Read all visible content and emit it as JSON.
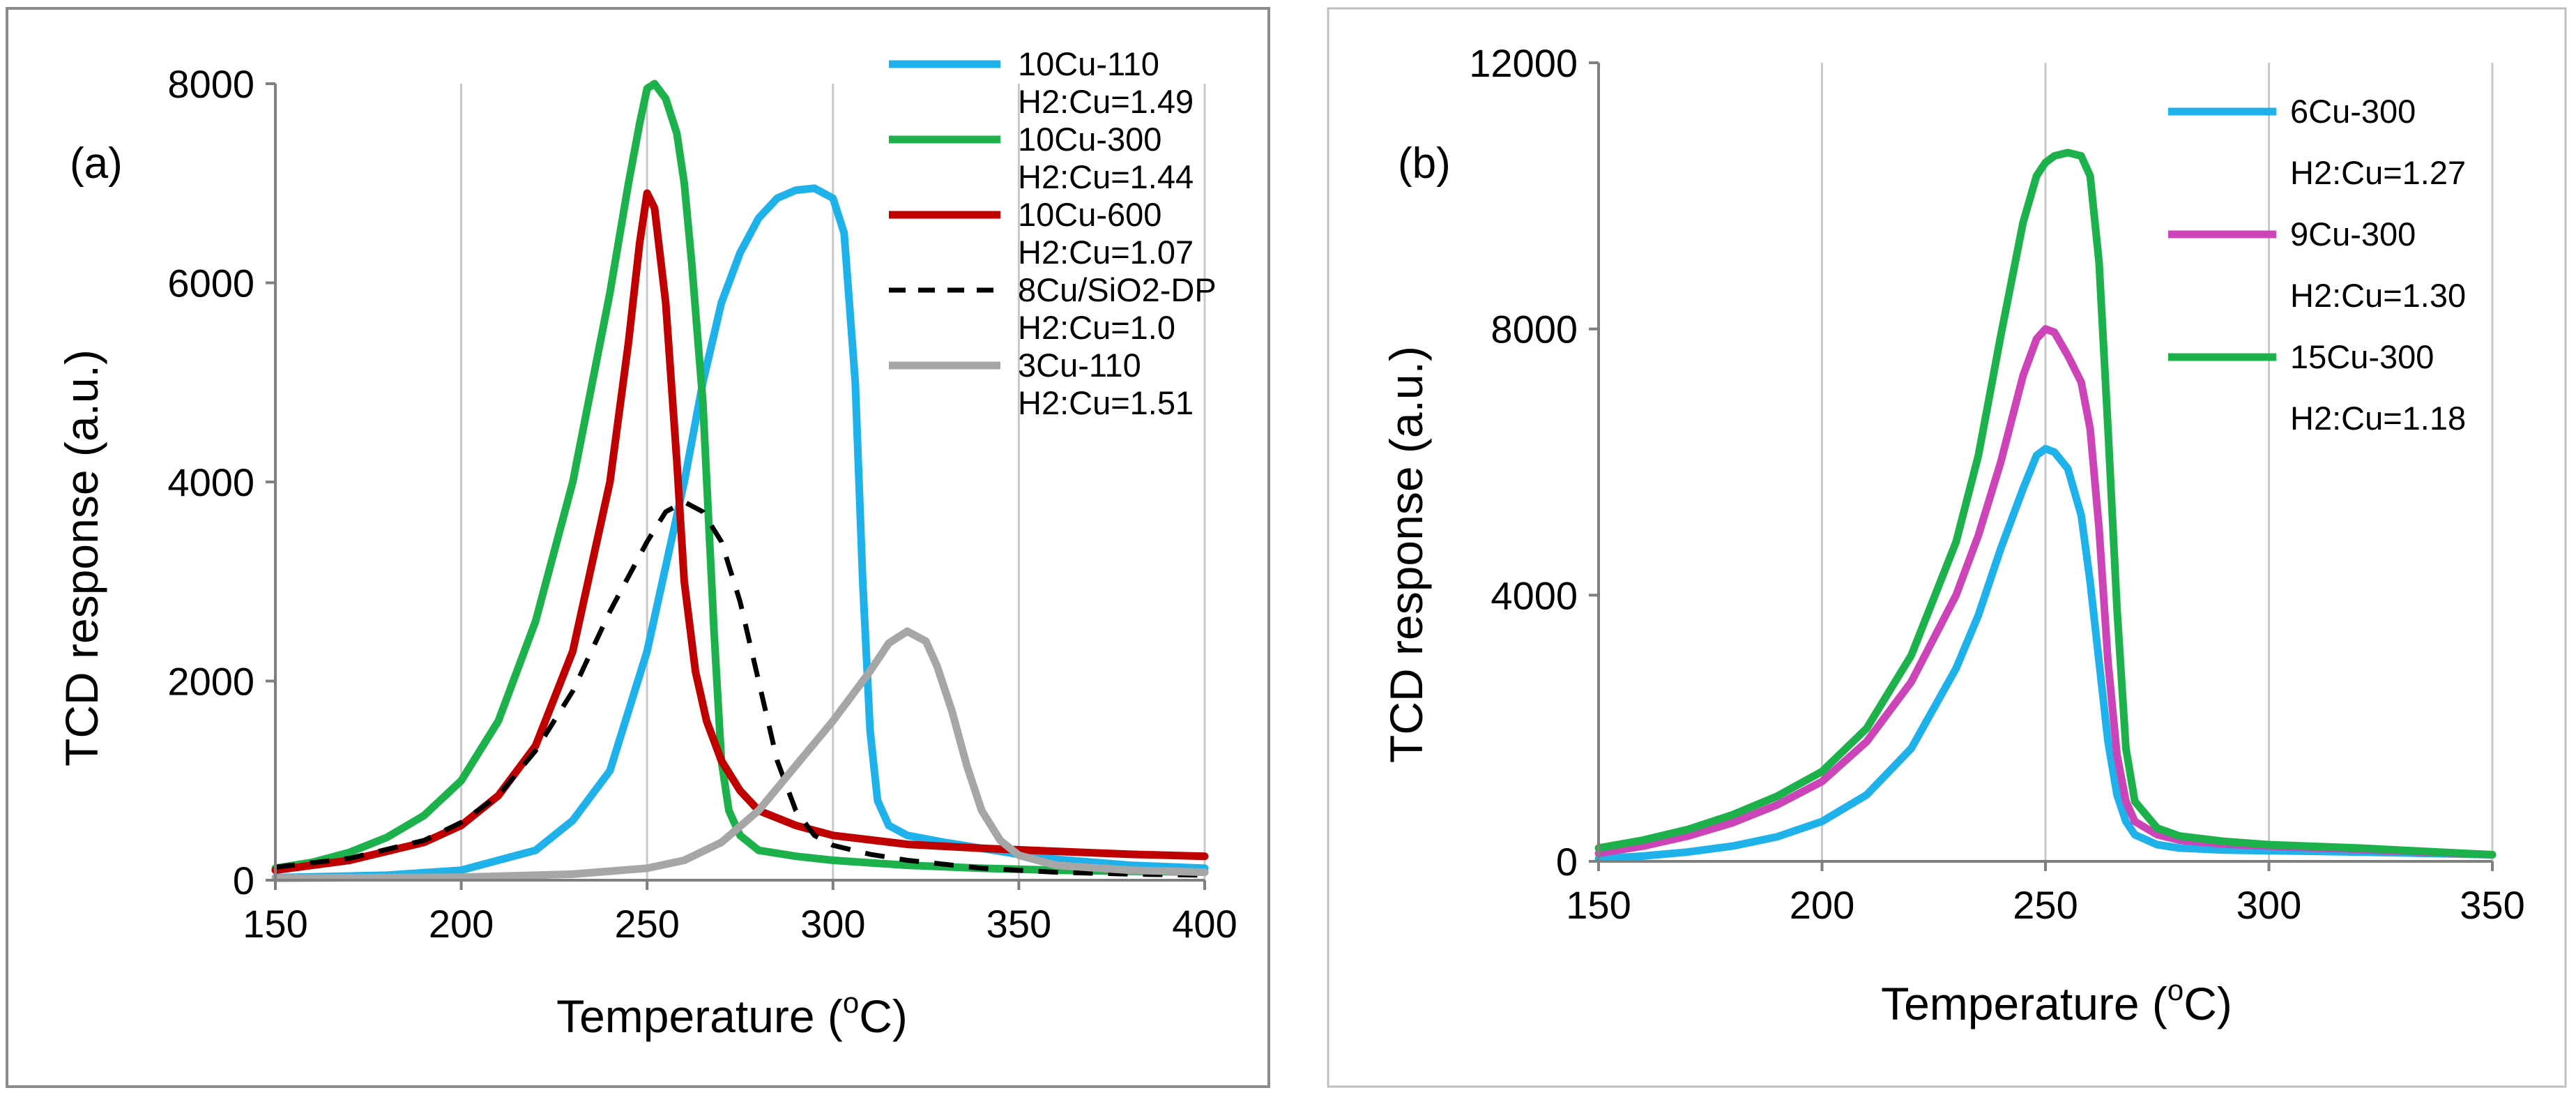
{
  "chart_data": [
    {
      "panel": "(a)",
      "type": "line",
      "xlabel": "Temperature (",
      "xlabel_sup": "o",
      "xlabel_end": "C)",
      "ylabel": "TCD response (a.u.)",
      "xlim": [
        150,
        400
      ],
      "ylim": [
        0,
        8000
      ],
      "xticks": [
        "150",
        "200",
        "250",
        "300",
        "350",
        "400"
      ],
      "yticks": [
        "0",
        "2000",
        "4000",
        "6000",
        "8000"
      ],
      "grid": "vertical",
      "legend_position": "top-right",
      "series": [
        {
          "name": "10Cu-110",
          "note": "H2:Cu=1.49",
          "color": "#1fb2ea",
          "dash": "solid",
          "x": [
            150,
            180,
            200,
            220,
            230,
            240,
            250,
            260,
            265,
            270,
            275,
            280,
            285,
            290,
            295,
            300,
            303,
            306,
            308,
            310,
            312,
            315,
            320,
            330,
            340,
            350,
            360,
            380,
            400
          ],
          "y": [
            25,
            50,
            100,
            300,
            600,
            1100,
            2300,
            4000,
            5000,
            5800,
            6300,
            6650,
            6850,
            6930,
            6950,
            6850,
            6500,
            5000,
            3000,
            1500,
            800,
            550,
            450,
            380,
            320,
            260,
            210,
            150,
            120
          ]
        },
        {
          "name": "10Cu-300",
          "note": "H2:Cu=1.44",
          "color": "#1db14b",
          "dash": "solid",
          "x": [
            150,
            160,
            170,
            180,
            190,
            200,
            210,
            220,
            230,
            240,
            245,
            248,
            250,
            252,
            255,
            258,
            260,
            262,
            265,
            268,
            270,
            272,
            275,
            280,
            290,
            300,
            320,
            340,
            360,
            400
          ],
          "y": [
            120,
            180,
            280,
            430,
            650,
            1000,
            1600,
            2600,
            4000,
            5900,
            7000,
            7600,
            7950,
            8000,
            7850,
            7500,
            7000,
            6200,
            4800,
            2500,
            1200,
            700,
            450,
            300,
            240,
            200,
            150,
            120,
            100,
            80
          ]
        },
        {
          "name": "10Cu-600",
          "note": "H2:Cu=1.07",
          "color": "#c00000",
          "dash": "solid",
          "x": [
            150,
            170,
            190,
            200,
            210,
            220,
            230,
            240,
            245,
            248,
            250,
            252,
            255,
            258,
            260,
            263,
            266,
            270,
            275,
            280,
            290,
            300,
            320,
            340,
            360,
            380,
            400
          ],
          "y": [
            100,
            200,
            380,
            550,
            850,
            1350,
            2300,
            4000,
            5400,
            6400,
            6900,
            6750,
            5800,
            4200,
            3000,
            2100,
            1600,
            1200,
            900,
            700,
            550,
            450,
            360,
            320,
            290,
            260,
            240
          ]
        },
        {
          "name": "8Cu/SiO2-DP",
          "note": "H2:Cu=1.0",
          "color": "#000000",
          "dash": "dashed",
          "x": [
            150,
            170,
            190,
            200,
            210,
            220,
            230,
            240,
            250,
            255,
            260,
            265,
            270,
            275,
            280,
            285,
            290,
            295,
            300,
            310,
            320,
            340,
            360,
            380,
            400
          ],
          "y": [
            130,
            220,
            400,
            580,
            850,
            1300,
            1900,
            2700,
            3400,
            3700,
            3800,
            3700,
            3400,
            2800,
            2000,
            1200,
            700,
            450,
            350,
            260,
            200,
            120,
            80,
            60,
            50
          ]
        },
        {
          "name": "3Cu-110",
          "note": "H2:Cu=1.51",
          "color": "#a6a6a6",
          "dash": "solid",
          "x": [
            150,
            200,
            230,
            250,
            260,
            270,
            280,
            290,
            300,
            305,
            310,
            315,
            320,
            325,
            328,
            332,
            336,
            340,
            345,
            350,
            360,
            380,
            400
          ],
          "y": [
            20,
            30,
            60,
            120,
            200,
            380,
            700,
            1150,
            1600,
            1850,
            2100,
            2380,
            2500,
            2400,
            2150,
            1700,
            1150,
            700,
            400,
            250,
            150,
            100,
            80
          ]
        }
      ]
    },
    {
      "panel": "(b)",
      "type": "line",
      "xlabel": "Temperature (",
      "xlabel_sup": "o",
      "xlabel_end": "C)",
      "ylabel": "TCD response (a.u.)",
      "xlim": [
        150,
        350
      ],
      "ylim": [
        0,
        12000
      ],
      "xticks": [
        "150",
        "200",
        "250",
        "300",
        "350"
      ],
      "yticks": [
        "0",
        "4000",
        "8000",
        "12000"
      ],
      "grid": "vertical",
      "legend_position": "top-right",
      "series": [
        {
          "name": "6Cu-300",
          "note": "H2:Cu=1.27",
          "color": "#1fb2ea",
          "dash": "solid",
          "x": [
            150,
            160,
            170,
            180,
            190,
            200,
            210,
            220,
            230,
            235,
            240,
            245,
            248,
            250,
            252,
            255,
            258,
            260,
            262,
            264,
            266,
            268,
            270,
            275,
            280,
            290,
            300,
            320,
            350
          ],
          "y": [
            40,
            80,
            140,
            230,
            370,
            600,
            1000,
            1700,
            2900,
            3700,
            4700,
            5600,
            6100,
            6200,
            6150,
            5900,
            5200,
            4200,
            3000,
            1800,
            1000,
            600,
            400,
            250,
            200,
            170,
            160,
            140,
            100
          ]
        },
        {
          "name": "9Cu-300",
          "note": "H2:Cu=1.30",
          "color": "#cc44b8",
          "dash": "solid",
          "x": [
            150,
            160,
            170,
            180,
            190,
            200,
            210,
            220,
            230,
            235,
            240,
            245,
            248,
            250,
            252,
            255,
            258,
            260,
            262,
            264,
            266,
            268,
            270,
            275,
            280,
            290,
            300,
            320,
            350
          ],
          "y": [
            120,
            230,
            380,
            580,
            850,
            1200,
            1800,
            2700,
            4000,
            4900,
            6000,
            7300,
            7850,
            8000,
            7950,
            7600,
            7200,
            6500,
            5000,
            3000,
            1600,
            900,
            600,
            400,
            320,
            260,
            230,
            180,
            100
          ]
        },
        {
          "name": "15Cu-300",
          "note": "H2:Cu=1.18",
          "color": "#1db14b",
          "dash": "solid",
          "x": [
            150,
            160,
            170,
            180,
            190,
            200,
            210,
            220,
            230,
            235,
            240,
            245,
            248,
            250,
            252,
            255,
            258,
            260,
            262,
            264,
            266,
            268,
            270,
            275,
            280,
            290,
            300,
            320,
            350
          ],
          "y": [
            200,
            320,
            480,
            700,
            980,
            1350,
            2000,
            3100,
            4800,
            6100,
            7900,
            9600,
            10300,
            10500,
            10600,
            10650,
            10600,
            10300,
            9000,
            6500,
            3800,
            1700,
            900,
            500,
            380,
            300,
            250,
            200,
            100
          ]
        }
      ]
    }
  ]
}
